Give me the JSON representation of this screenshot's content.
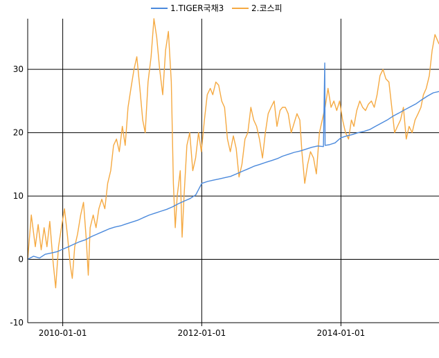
{
  "chart_data": {
    "type": "line",
    "title": "",
    "xlabel": "",
    "ylabel": "",
    "ylim": [
      -10,
      38
    ],
    "xlim": [
      "2009-07-01",
      "2015-05-31"
    ],
    "yticks": [
      -10,
      0,
      10,
      20,
      30
    ],
    "xticks": [
      "2010-01-01",
      "2012-01-01",
      "2014-01-01"
    ],
    "grid": true,
    "legend_position": "top-center",
    "series": [
      {
        "name": "1.TIGER국채3",
        "color": "#4a89dc",
        "points": [
          [
            "2009-07-01",
            0.0
          ],
          [
            "2009-08-01",
            0.5
          ],
          [
            "2009-09-01",
            0.2
          ],
          [
            "2009-10-01",
            0.8
          ],
          [
            "2009-11-01",
            1.0
          ],
          [
            "2009-12-01",
            1.2
          ],
          [
            "2010-01-01",
            1.6
          ],
          [
            "2010-02-01",
            2.0
          ],
          [
            "2010-03-01",
            2.4
          ],
          [
            "2010-04-01",
            2.8
          ],
          [
            "2010-05-01",
            3.1
          ],
          [
            "2010-06-01",
            3.6
          ],
          [
            "2010-07-01",
            4.0
          ],
          [
            "2010-08-01",
            4.4
          ],
          [
            "2010-09-01",
            4.8
          ],
          [
            "2010-10-01",
            5.1
          ],
          [
            "2010-11-01",
            5.3
          ],
          [
            "2010-12-01",
            5.6
          ],
          [
            "2011-01-01",
            5.9
          ],
          [
            "2011-02-01",
            6.2
          ],
          [
            "2011-03-01",
            6.6
          ],
          [
            "2011-04-01",
            7.0
          ],
          [
            "2011-05-01",
            7.3
          ],
          [
            "2011-06-01",
            7.6
          ],
          [
            "2011-07-01",
            7.9
          ],
          [
            "2011-08-01",
            8.3
          ],
          [
            "2011-09-01",
            8.8
          ],
          [
            "2011-10-01",
            9.2
          ],
          [
            "2011-11-01",
            9.6
          ],
          [
            "2011-12-01",
            10.2
          ],
          [
            "2012-01-01",
            12.0
          ],
          [
            "2012-02-01",
            12.3
          ],
          [
            "2012-03-01",
            12.5
          ],
          [
            "2012-04-01",
            12.7
          ],
          [
            "2012-05-01",
            12.9
          ],
          [
            "2012-06-01",
            13.1
          ],
          [
            "2012-07-01",
            13.5
          ],
          [
            "2012-08-01",
            13.9
          ],
          [
            "2012-09-01",
            14.3
          ],
          [
            "2012-10-01",
            14.7
          ],
          [
            "2012-11-01",
            15.0
          ],
          [
            "2012-12-01",
            15.3
          ],
          [
            "2013-01-01",
            15.6
          ],
          [
            "2013-02-01",
            15.9
          ],
          [
            "2013-03-01",
            16.3
          ],
          [
            "2013-04-01",
            16.6
          ],
          [
            "2013-05-01",
            16.9
          ],
          [
            "2013-06-01",
            17.1
          ],
          [
            "2013-07-01",
            17.4
          ],
          [
            "2013-08-01",
            17.7
          ],
          [
            "2013-09-01",
            17.9
          ],
          [
            "2013-10-01",
            17.8
          ],
          [
            "2013-10-08",
            31.0
          ],
          [
            "2013-10-10",
            18.0
          ],
          [
            "2013-11-01",
            18.1
          ],
          [
            "2013-12-01",
            18.4
          ],
          [
            "2014-01-01",
            19.2
          ],
          [
            "2014-02-01",
            19.5
          ],
          [
            "2014-03-01",
            19.7
          ],
          [
            "2014-04-01",
            20.0
          ],
          [
            "2014-05-01",
            20.2
          ],
          [
            "2014-06-01",
            20.5
          ],
          [
            "2014-07-01",
            21.0
          ],
          [
            "2014-08-01",
            21.5
          ],
          [
            "2014-09-01",
            22.0
          ],
          [
            "2014-10-01",
            22.6
          ],
          [
            "2014-11-01",
            23.1
          ],
          [
            "2014-12-01",
            23.6
          ],
          [
            "2015-01-01",
            24.1
          ],
          [
            "2015-02-01",
            24.6
          ],
          [
            "2015-03-01",
            25.2
          ],
          [
            "2015-04-01",
            25.8
          ],
          [
            "2015-05-01",
            26.3
          ],
          [
            "2015-05-31",
            26.5
          ]
        ]
      },
      {
        "name": "2.코스피",
        "color": "#f5a941",
        "points": [
          [
            "2009-07-01",
            0.0
          ],
          [
            "2009-07-20",
            7.0
          ],
          [
            "2009-08-10",
            2.0
          ],
          [
            "2009-08-25",
            5.5
          ],
          [
            "2009-09-10",
            1.5
          ],
          [
            "2009-09-25",
            5.0
          ],
          [
            "2009-10-10",
            2.0
          ],
          [
            "2009-10-25",
            6.0
          ],
          [
            "2009-11-10",
            0.0
          ],
          [
            "2009-11-25",
            -4.5
          ],
          [
            "2009-12-10",
            2.0
          ],
          [
            "2009-12-25",
            5.0
          ],
          [
            "2010-01-10",
            8.0
          ],
          [
            "2010-01-25",
            4.0
          ],
          [
            "2010-02-10",
            -1.0
          ],
          [
            "2010-02-20",
            -3.0
          ],
          [
            "2010-03-05",
            2.0
          ],
          [
            "2010-03-20",
            4.0
          ],
          [
            "2010-04-05",
            7.0
          ],
          [
            "2010-04-20",
            9.0
          ],
          [
            "2010-05-05",
            3.0
          ],
          [
            "2010-05-15",
            -2.5
          ],
          [
            "2010-05-25",
            5.0
          ],
          [
            "2010-06-10",
            7.0
          ],
          [
            "2010-06-25",
            5.0
          ],
          [
            "2010-07-10",
            8.0
          ],
          [
            "2010-07-25",
            9.5
          ],
          [
            "2010-08-10",
            8.0
          ],
          [
            "2010-08-25",
            12.0
          ],
          [
            "2010-09-10",
            14.0
          ],
          [
            "2010-09-25",
            18.0
          ],
          [
            "2010-10-10",
            19.0
          ],
          [
            "2010-10-25",
            17.0
          ],
          [
            "2010-11-10",
            21.0
          ],
          [
            "2010-11-25",
            18.0
          ],
          [
            "2010-12-10",
            24.0
          ],
          [
            "2010-12-25",
            27.0
          ],
          [
            "2011-01-10",
            30.0
          ],
          [
            "2011-01-25",
            32.0
          ],
          [
            "2011-02-10",
            27.0
          ],
          [
            "2011-02-25",
            22.0
          ],
          [
            "2011-03-10",
            20.0
          ],
          [
            "2011-03-25",
            28.0
          ],
          [
            "2011-04-10",
            32.0
          ],
          [
            "2011-04-25",
            38.0
          ],
          [
            "2011-05-10",
            35.0
          ],
          [
            "2011-05-25",
            30.0
          ],
          [
            "2011-06-10",
            26.0
          ],
          [
            "2011-06-25",
            33.0
          ],
          [
            "2011-07-10",
            36.0
          ],
          [
            "2011-07-25",
            28.0
          ],
          [
            "2011-08-05",
            12.0
          ],
          [
            "2011-08-15",
            5.0
          ],
          [
            "2011-08-25",
            10.0
          ],
          [
            "2011-09-10",
            14.0
          ],
          [
            "2011-09-20",
            3.5
          ],
          [
            "2011-09-30",
            10.0
          ],
          [
            "2011-10-15",
            18.0
          ],
          [
            "2011-10-30",
            20.0
          ],
          [
            "2011-11-15",
            14.0
          ],
          [
            "2011-11-30",
            16.0
          ],
          [
            "2011-12-15",
            20.0
          ],
          [
            "2011-12-30",
            17.0
          ],
          [
            "2012-01-15",
            22.0
          ],
          [
            "2012-01-30",
            26.0
          ],
          [
            "2012-02-15",
            27.0
          ],
          [
            "2012-02-28",
            26.0
          ],
          [
            "2012-03-15",
            28.0
          ],
          [
            "2012-03-30",
            27.5
          ],
          [
            "2012-04-15",
            25.0
          ],
          [
            "2012-04-30",
            24.0
          ],
          [
            "2012-05-15",
            19.0
          ],
          [
            "2012-05-30",
            17.0
          ],
          [
            "2012-06-15",
            19.5
          ],
          [
            "2012-06-30",
            17.5
          ],
          [
            "2012-07-15",
            13.0
          ],
          [
            "2012-07-30",
            15.0
          ],
          [
            "2012-08-15",
            19.0
          ],
          [
            "2012-08-30",
            20.0
          ],
          [
            "2012-09-15",
            24.0
          ],
          [
            "2012-09-30",
            22.0
          ],
          [
            "2012-10-15",
            21.0
          ],
          [
            "2012-10-30",
            19.0
          ],
          [
            "2012-11-15",
            16.0
          ],
          [
            "2012-11-30",
            20.0
          ],
          [
            "2012-12-15",
            23.0
          ],
          [
            "2012-12-30",
            24.0
          ],
          [
            "2013-01-15",
            25.0
          ],
          [
            "2013-01-30",
            21.0
          ],
          [
            "2013-02-15",
            23.5
          ],
          [
            "2013-02-28",
            24.0
          ],
          [
            "2013-03-15",
            24.0
          ],
          [
            "2013-03-30",
            23.0
          ],
          [
            "2013-04-15",
            20.0
          ],
          [
            "2013-04-30",
            21.5
          ],
          [
            "2013-05-15",
            23.0
          ],
          [
            "2013-05-30",
            22.0
          ],
          [
            "2013-06-10",
            17.0
          ],
          [
            "2013-06-25",
            12.0
          ],
          [
            "2013-07-10",
            15.0
          ],
          [
            "2013-07-25",
            17.0
          ],
          [
            "2013-08-10",
            16.0
          ],
          [
            "2013-08-25",
            13.5
          ],
          [
            "2013-09-10",
            20.0
          ],
          [
            "2013-09-25",
            22.0
          ],
          [
            "2013-10-10",
            24.0
          ],
          [
            "2013-10-25",
            27.0
          ],
          [
            "2013-11-10",
            24.0
          ],
          [
            "2013-11-25",
            25.0
          ],
          [
            "2013-12-10",
            23.5
          ],
          [
            "2013-12-25",
            25.0
          ],
          [
            "2014-01-10",
            22.0
          ],
          [
            "2014-01-25",
            20.0
          ],
          [
            "2014-02-10",
            19.0
          ],
          [
            "2014-02-25",
            22.0
          ],
          [
            "2014-03-10",
            21.0
          ],
          [
            "2014-03-25",
            23.5
          ],
          [
            "2014-04-10",
            25.0
          ],
          [
            "2014-04-25",
            24.0
          ],
          [
            "2014-05-10",
            23.5
          ],
          [
            "2014-05-25",
            24.5
          ],
          [
            "2014-06-10",
            25.0
          ],
          [
            "2014-06-25",
            24.0
          ],
          [
            "2014-07-10",
            26.0
          ],
          [
            "2014-07-25",
            29.0
          ],
          [
            "2014-08-10",
            30.0
          ],
          [
            "2014-08-25",
            28.5
          ],
          [
            "2014-09-10",
            28.0
          ],
          [
            "2014-09-25",
            24.0
          ],
          [
            "2014-10-10",
            20.0
          ],
          [
            "2014-10-25",
            21.0
          ],
          [
            "2014-11-10",
            22.0
          ],
          [
            "2014-11-25",
            24.0
          ],
          [
            "2014-12-10",
            19.0
          ],
          [
            "2014-12-25",
            21.0
          ],
          [
            "2015-01-10",
            20.0
          ],
          [
            "2015-01-25",
            22.0
          ],
          [
            "2015-02-10",
            23.0
          ],
          [
            "2015-02-25",
            24.0
          ],
          [
            "2015-03-10",
            26.0
          ],
          [
            "2015-03-25",
            27.0
          ],
          [
            "2015-04-10",
            29.0
          ],
          [
            "2015-04-25",
            33.0
          ],
          [
            "2015-05-10",
            35.5
          ],
          [
            "2015-05-31",
            34.0
          ]
        ]
      }
    ]
  }
}
